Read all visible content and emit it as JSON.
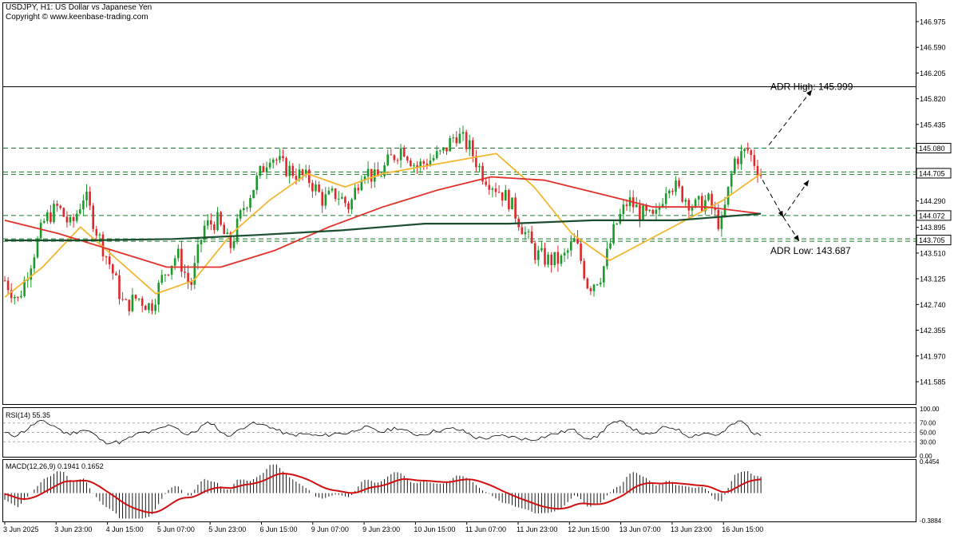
{
  "header": {
    "title": "USDJPY, H1:  US Dollar vs Japanese Yen",
    "copyright": "Copyright © www.keenbase-trading.com"
  },
  "chart_data": {
    "type": "candlestick",
    "symbol": "USDJPY",
    "timeframe": "H1",
    "price_axis_ticks": [
      "146.975",
      "146.590",
      "146.205",
      "145.820",
      "145.435",
      "144.705",
      "144.290",
      "143.895",
      "143.510",
      "143.125",
      "142.740",
      "142.355",
      "141.970",
      "141.585"
    ],
    "ylim": [
      141.25,
      147.25
    ],
    "x_labels": [
      "3 Jun 2025",
      "3 Jun 23:00",
      "4 Jun 15:00",
      "5 Jun 07:00",
      "5 Jun 23:00",
      "6 Jun 15:00",
      "9 Jun 07:00",
      "9 Jun 23:00",
      "10 Jun 15:00",
      "11 Jun 07:00",
      "11 Jun 23:00",
      "12 Jun 15:00",
      "13 Jun 07:00",
      "13 Jun 23:00",
      "16 Jun 15:00"
    ],
    "price_labels": [
      {
        "value": 145.08,
        "text": "145.080",
        "style": "dashed"
      },
      {
        "value": 144.705,
        "text": "144.705",
        "style": "double"
      },
      {
        "value": 144.072,
        "text": "144.072",
        "style": "dashed"
      },
      {
        "value": 143.705,
        "text": "143.705",
        "style": "double"
      }
    ],
    "upper_line": 146.0,
    "annotations": [
      {
        "text": "ADR High: 145.999",
        "value": 145.999
      },
      {
        "text": "ADR Low: 143.687",
        "value": 143.687
      }
    ],
    "ohlc_path": [
      143.1,
      142.8,
      143.4,
      144.0,
      144.2,
      143.9,
      144.4,
      143.8,
      143.3,
      142.7,
      142.85,
      142.7,
      143.2,
      143.5,
      143.0,
      143.9,
      144.0,
      143.6,
      144.2,
      144.6,
      145.0,
      144.8,
      144.7,
      144.6,
      144.3,
      144.4,
      144.2,
      144.8,
      144.6,
      144.9,
      145.1,
      144.8,
      144.9,
      145.0,
      145.3,
      145.1,
      144.7,
      144.5,
      144.3,
      143.9,
      143.5,
      143.4,
      143.4,
      143.7,
      143.0,
      143.2,
      143.9,
      144.3,
      144.1,
      144.0,
      144.6,
      144.4,
      144.2,
      144.3,
      143.9,
      144.9,
      145.05,
      144.7
    ],
    "series": [
      {
        "name": "",
        "color": "#f5b731",
        "values": [
          142.85,
          143.3,
          143.9,
          143.4,
          142.9,
          143.1,
          143.8,
          144.3,
          144.7,
          144.5,
          144.7,
          144.8,
          144.9,
          145.0,
          144.5,
          143.8,
          143.4,
          143.7,
          144.0,
          144.3,
          144.7
        ]
      },
      {
        "name": "",
        "color": "#e2302a",
        "values": [
          144.0,
          143.8,
          143.55,
          143.3,
          143.3,
          143.55,
          143.9,
          144.2,
          144.45,
          144.65,
          144.6,
          144.4,
          144.2,
          144.2,
          144.1
        ]
      },
      {
        "name": "",
        "color": "#1c4f2f",
        "values": [
          143.7,
          143.7,
          143.72,
          143.78,
          143.85,
          143.95,
          143.95,
          144.0,
          144.0,
          144.1
        ]
      }
    ],
    "rsi": {
      "label": "RSI(14) 55.35",
      "ticks": [
        "100.00",
        "70.00",
        "50.00",
        "30.00",
        "0.00"
      ],
      "levels": [
        70,
        50,
        30
      ]
    },
    "macd": {
      "label": "MACD(12,26,9) 0.1941 0.1652",
      "ticks": [
        "0.4454",
        "-0.3884"
      ],
      "ylim": [
        -0.3884,
        0.4454
      ]
    }
  }
}
